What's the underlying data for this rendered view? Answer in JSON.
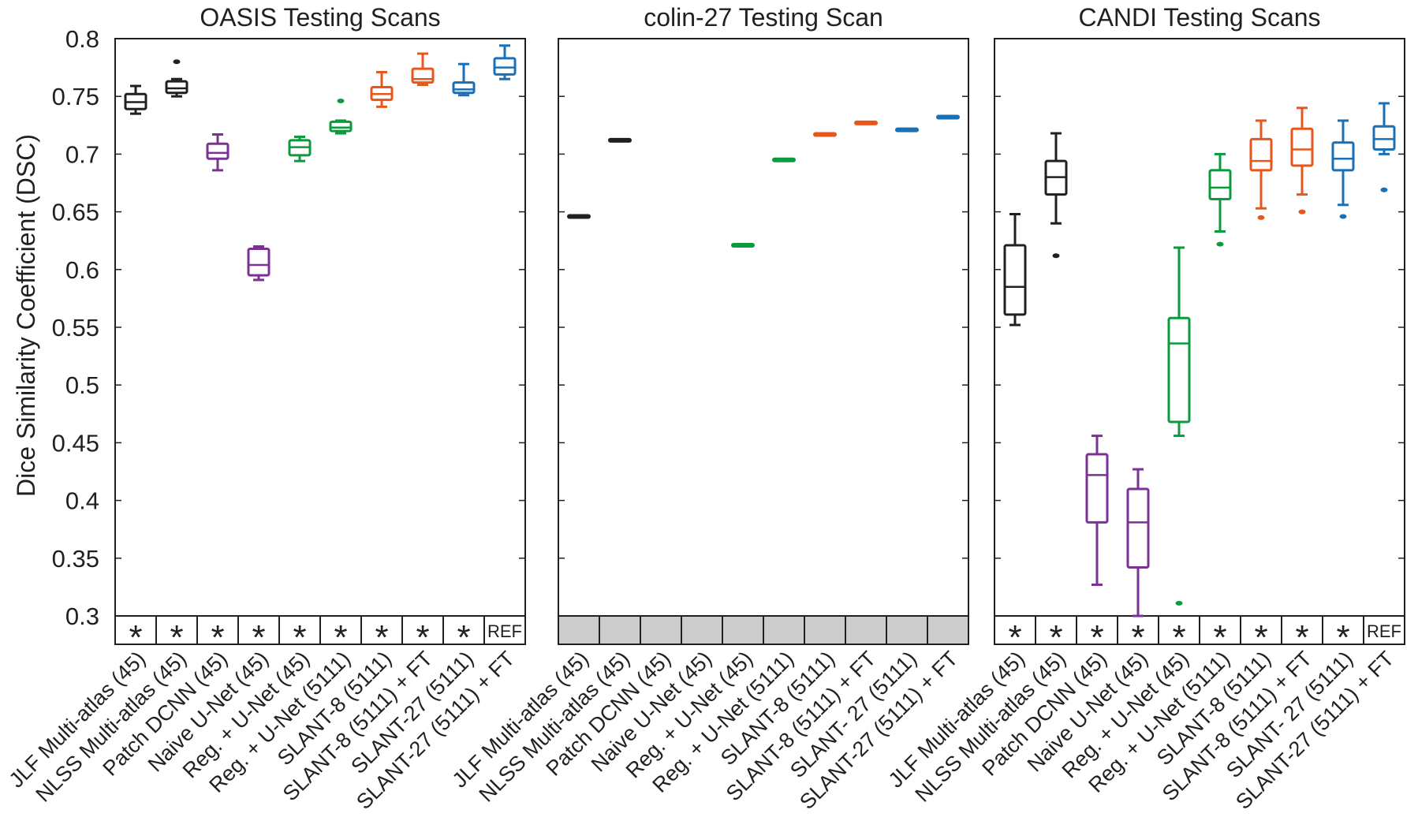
{
  "ylabel": "Dice Similarity Coefficient (DSC)",
  "y_ticks": [
    "0.8",
    "0.75",
    "0.7",
    "0.65",
    "0.6",
    "0.55",
    "0.5",
    "0.45",
    "0.4",
    "0.35",
    "0.3"
  ],
  "colors": {
    "black": "#231f20",
    "purple": "#7b3294",
    "green": "#0b9a3c",
    "orange": "#e8561c",
    "blue": "#1b6fb5",
    "gray_cell": "#cccccc"
  },
  "method_labels": [
    "JLF Multi-atlas (45)",
    "NLSS Multi-atlas (45)",
    "Patch DCNN (45)",
    "Naive U-Net (45)",
    "Reg. + U-Net (45)",
    "Reg. + U-Net (5111)",
    "SLANT-8 (5111)",
    "SLANT-8 (5111) + FT",
    "SLANT-27 (5111)",
    "SLANT-27 (5111) + FT"
  ],
  "chart_data": [
    {
      "type": "box",
      "title": "OASIS Testing Scans",
      "ylabel": "Dice Similarity Coefficient (DSC)",
      "ylim": [
        0.3,
        0.8
      ],
      "categories": [
        "JLF Multi-atlas (45)",
        "NLSS Multi-atlas (45)",
        "Patch DCNN (45)",
        "Naive U-Net (45)",
        "Reg. + U-Net (45)",
        "Reg. + U-Net (5111)",
        "SLANT-8 (5111)",
        "SLANT-8 (5111) + FT",
        "SLANT-27 (5111)",
        "SLANT-27 (5111) + FT"
      ],
      "colors": [
        "black",
        "black",
        "purple",
        "purple",
        "green",
        "green",
        "orange",
        "orange",
        "blue",
        "blue"
      ],
      "boxes": [
        {
          "min": 0.735,
          "q1": 0.739,
          "median": 0.745,
          "q3": 0.752,
          "max": 0.759,
          "outliers": []
        },
        {
          "min": 0.75,
          "q1": 0.753,
          "median": 0.757,
          "q3": 0.763,
          "max": 0.765,
          "outliers": [
            0.78
          ]
        },
        {
          "min": 0.686,
          "q1": 0.696,
          "median": 0.701,
          "q3": 0.709,
          "max": 0.717,
          "outliers": []
        },
        {
          "min": 0.591,
          "q1": 0.595,
          "median": 0.604,
          "q3": 0.618,
          "max": 0.62,
          "outliers": []
        },
        {
          "min": 0.694,
          "q1": 0.699,
          "median": 0.706,
          "q3": 0.712,
          "max": 0.715,
          "outliers": []
        },
        {
          "min": 0.718,
          "q1": 0.72,
          "median": 0.723,
          "q3": 0.728,
          "max": 0.729,
          "outliers": [
            0.746
          ]
        },
        {
          "min": 0.741,
          "q1": 0.747,
          "median": 0.752,
          "q3": 0.758,
          "max": 0.771,
          "outliers": []
        },
        {
          "min": 0.76,
          "q1": 0.762,
          "median": 0.765,
          "q3": 0.774,
          "max": 0.787,
          "outliers": []
        },
        {
          "min": 0.751,
          "q1": 0.753,
          "median": 0.756,
          "q3": 0.762,
          "max": 0.778,
          "outliers": []
        },
        {
          "min": 0.765,
          "q1": 0.769,
          "median": 0.775,
          "q3": 0.783,
          "max": 0.794,
          "outliers": []
        }
      ],
      "significance": [
        "*",
        "*",
        "*",
        "*",
        "*",
        "*",
        "*",
        "*",
        "*",
        "REF"
      ],
      "significance_shaded": false
    },
    {
      "type": "box",
      "title": "colin-27 Testing Scan",
      "ylim": [
        0.3,
        0.8
      ],
      "categories": [
        "JLF Multi-atlas (45)",
        "NLSS Multi-atlas (45)",
        "Patch DCNN (45)",
        "Naive U-Net (45)",
        "Reg. + U-Net (45)",
        "Reg. + U-Net (5111)",
        "SLANT-8 (5111)",
        "SLANT-8 (5111) + FT",
        "SLANT- 27 (5111)",
        "SLANT-27 (5111) + FT"
      ],
      "colors": [
        "black",
        "black",
        "purple",
        "purple",
        "green",
        "green",
        "orange",
        "orange",
        "blue",
        "blue"
      ],
      "values": [
        0.646,
        0.712,
        null,
        null,
        0.621,
        0.695,
        0.717,
        0.727,
        0.721,
        0.732
      ],
      "significance": [
        "",
        "",
        "",
        "",
        "",
        "",
        "",
        "",
        "",
        ""
      ],
      "significance_shaded": true
    },
    {
      "type": "box",
      "title": "CANDI Testing Scans",
      "ylim": [
        0.3,
        0.8
      ],
      "categories": [
        "JLF Multi-atlas (45)",
        "NLSS Multi-atlas (45)",
        "Patch DCNN (45)",
        "Naive U-Net (45)",
        "Reg. + U-Net (45)",
        "Reg. + U-Net (5111)",
        "SLANT-8 (5111)",
        "SLANT-8 (5111) + FT",
        "SLANT- 27 (5111)",
        "SLANT-27 (5111) + FT"
      ],
      "colors": [
        "black",
        "black",
        "purple",
        "purple",
        "green",
        "green",
        "orange",
        "orange",
        "blue",
        "blue"
      ],
      "boxes": [
        {
          "min": 0.552,
          "q1": 0.561,
          "median": 0.585,
          "q3": 0.621,
          "max": 0.648,
          "outliers": []
        },
        {
          "min": 0.64,
          "q1": 0.665,
          "median": 0.68,
          "q3": 0.694,
          "max": 0.718,
          "outliers": [
            0.612
          ]
        },
        {
          "min": 0.327,
          "q1": 0.381,
          "median": 0.422,
          "q3": 0.44,
          "max": 0.456,
          "outliers": []
        },
        {
          "min": 0.3,
          "q1": 0.342,
          "median": 0.381,
          "q3": 0.41,
          "max": 0.427,
          "outliers": []
        },
        {
          "min": 0.456,
          "q1": 0.468,
          "median": 0.536,
          "q3": 0.558,
          "max": 0.619,
          "outliers": [
            0.311
          ]
        },
        {
          "min": 0.633,
          "q1": 0.661,
          "median": 0.671,
          "q3": 0.686,
          "max": 0.7,
          "outliers": [
            0.622
          ]
        },
        {
          "min": 0.653,
          "q1": 0.686,
          "median": 0.694,
          "q3": 0.713,
          "max": 0.729,
          "outliers": [
            0.645
          ]
        },
        {
          "min": 0.665,
          "q1": 0.69,
          "median": 0.704,
          "q3": 0.722,
          "max": 0.74,
          "outliers": [
            0.65
          ]
        },
        {
          "min": 0.656,
          "q1": 0.686,
          "median": 0.696,
          "q3": 0.71,
          "max": 0.729,
          "outliers": [
            0.646
          ]
        },
        {
          "min": 0.7,
          "q1": 0.704,
          "median": 0.713,
          "q3": 0.724,
          "max": 0.744,
          "outliers": [
            0.669
          ]
        }
      ],
      "significance": [
        "*",
        "*",
        "*",
        "*",
        "*",
        "*",
        "*",
        "*",
        "*",
        "REF"
      ],
      "significance_shaded": false
    }
  ]
}
